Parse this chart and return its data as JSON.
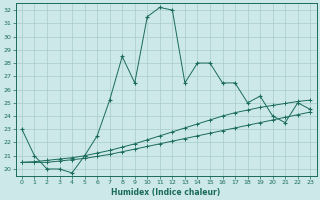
{
  "xlabel": "Humidex (Indice chaleur)",
  "x_values": [
    0,
    1,
    2,
    3,
    4,
    5,
    6,
    7,
    8,
    9,
    10,
    11,
    12,
    13,
    14,
    15,
    16,
    17,
    18,
    19,
    20,
    21,
    22,
    23
  ],
  "main_line": [
    23,
    21,
    20,
    20.0,
    19.7,
    21.0,
    22.5,
    25.2,
    28.5,
    26.5,
    31.5,
    32.2,
    32.0,
    26.5,
    28.0,
    28.0,
    26.5,
    26.5,
    25.0,
    25.5,
    24.0,
    23.5,
    25.0,
    24.5
  ],
  "line2": [
    20.5,
    20.5,
    20.5,
    20.6,
    20.7,
    20.8,
    20.95,
    21.1,
    21.3,
    21.5,
    21.7,
    21.9,
    22.1,
    22.3,
    22.5,
    22.7,
    22.9,
    23.1,
    23.3,
    23.5,
    23.7,
    23.9,
    24.1,
    24.3
  ],
  "line3": [
    20.5,
    20.55,
    20.65,
    20.75,
    20.85,
    21.0,
    21.2,
    21.4,
    21.65,
    21.9,
    22.2,
    22.5,
    22.8,
    23.1,
    23.4,
    23.7,
    24.0,
    24.25,
    24.45,
    24.65,
    24.8,
    24.95,
    25.1,
    25.2
  ],
  "ylim": [
    19.5,
    32.5
  ],
  "xlim": [
    -0.5,
    23.5
  ],
  "bg_color": "#cce8e8",
  "line_color": "#1a6b5a",
  "grid_color": "#a8cccc",
  "yticks": [
    20,
    21,
    22,
    23,
    24,
    25,
    26,
    27,
    28,
    29,
    30,
    31,
    32
  ],
  "xticks": [
    0,
    1,
    2,
    3,
    4,
    5,
    6,
    7,
    8,
    9,
    10,
    11,
    12,
    13,
    14,
    15,
    16,
    17,
    18,
    19,
    20,
    21,
    22,
    23
  ]
}
